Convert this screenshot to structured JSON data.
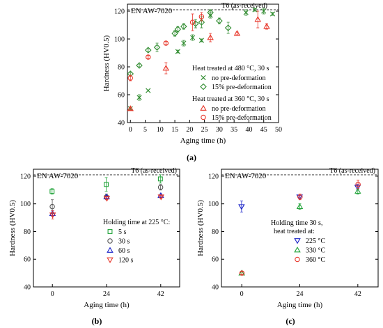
{
  "chart_data": [
    {
      "type": "scatter",
      "panel_label": "(a)",
      "title": "EN AW-7020",
      "xlabel": "Aging time (h)",
      "ylabel": "Hardness (HV0.5)",
      "xlim": [
        -1,
        50
      ],
      "ylim": [
        40,
        125
      ],
      "xticks": [
        0,
        5,
        10,
        15,
        20,
        25,
        30,
        35,
        40,
        45,
        50
      ],
      "yticks": [
        40,
        60,
        80,
        100,
        120
      ],
      "reference": {
        "label": "T6 (as-received)",
        "y": 121
      },
      "legend": {
        "placement": "right",
        "groups": [
          {
            "heading": "Heat treated at 480 °C, 30 s",
            "entries": [
              "no pre-deformation",
              "15% pre-deformation"
            ]
          },
          {
            "heading": "Heat treated at 360 °C, 30 s",
            "entries": [
              "no pre-deformation",
              "15% pre-deformation"
            ]
          }
        ]
      },
      "series": [
        {
          "name": "no pre-deformation",
          "group": "Heat treated at 480 °C, 30 s",
          "marker": "x",
          "color": "#2e8b2e",
          "x": [
            0,
            3,
            6,
            16,
            18,
            21,
            24,
            27,
            39,
            42,
            45,
            48
          ],
          "y": [
            50,
            58,
            63,
            91,
            97,
            101,
            99,
            117,
            119,
            121,
            120,
            118
          ],
          "err": [
            1,
            2,
            0,
            1,
            2,
            2,
            1,
            2,
            2,
            1,
            2,
            1
          ]
        },
        {
          "name": "15% pre-deformation",
          "group": "Heat treated at 480 °C, 30 s",
          "marker": "diamond",
          "color": "#2e8b2e",
          "x": [
            0,
            3,
            6,
            9,
            15,
            16,
            18,
            22,
            24,
            27,
            30,
            33
          ],
          "y": [
            75,
            81,
            92,
            94,
            104,
            107,
            109,
            111,
            112,
            119,
            113,
            108
          ],
          "err": [
            1,
            1,
            1,
            3,
            2,
            2,
            2,
            3,
            4,
            2,
            2,
            4
          ]
        },
        {
          "name": "no pre-deformation",
          "group": "Heat treated at 360 °C, 30 s",
          "marker": "triangle-up",
          "color": "#e8382c",
          "x": [
            0,
            12,
            27,
            36,
            43,
            46
          ],
          "y": [
            50,
            79,
            101,
            104,
            114,
            109
          ],
          "err": [
            1,
            4,
            3,
            1,
            6,
            2
          ]
        },
        {
          "name": "15% pre-deformation",
          "group": "Heat treated at 360 °C, 30 s",
          "marker": "circle",
          "color": "#e8382c",
          "x": [
            0,
            6,
            12,
            21,
            24
          ],
          "y": [
            72,
            87,
            97,
            112,
            116
          ],
          "err": [
            2,
            1,
            1,
            6,
            3
          ]
        }
      ]
    },
    {
      "type": "scatter",
      "panel_label": "(b)",
      "title": "EN AW-7020",
      "xlabel": "Aging time (h)",
      "ylabel": "Hardness (HV0.5)",
      "categories": [
        "0",
        "24",
        "42"
      ],
      "ylim": [
        40,
        125
      ],
      "yticks": [
        40,
        60,
        80,
        100,
        120
      ],
      "reference": {
        "label": "T6 (as-received)",
        "y": 121
      },
      "legend": {
        "placement": "right",
        "groups": [
          {
            "heading": "Holding time at 225 °C:",
            "entries": [
              "5 s",
              "30 s",
              "60 s",
              "120 s"
            ]
          }
        ]
      },
      "series": [
        {
          "name": "5 s",
          "marker": "square",
          "color": "#22a43a",
          "values": [
            109,
            114,
            118
          ],
          "err": [
            2,
            5,
            3
          ]
        },
        {
          "name": "30 s",
          "marker": "circle",
          "color": "#555555",
          "values": [
            98,
            105,
            112
          ],
          "err": [
            5,
            2,
            2
          ]
        },
        {
          "name": "60 s",
          "marker": "triangle-up",
          "color": "#1a23c8",
          "values": [
            93,
            105,
            106
          ],
          "err": [
            2,
            1,
            1
          ]
        },
        {
          "name": "120 s",
          "marker": "triangle-down",
          "color": "#e8382c",
          "values": [
            92,
            104,
            105
          ],
          "err": [
            3,
            1,
            1
          ]
        }
      ]
    },
    {
      "type": "scatter",
      "panel_label": "(c)",
      "title": "EN AW-7020",
      "xlabel": "Aging time (h)",
      "ylabel": "Hardness (HV0.5)",
      "categories": [
        "0",
        "24",
        "42"
      ],
      "ylim": [
        40,
        125
      ],
      "yticks": [
        40,
        60,
        80,
        100,
        120
      ],
      "reference": {
        "label": "T6 (as-received)",
        "y": 121
      },
      "legend": {
        "placement": "right",
        "groups": [
          {
            "heading": "Holding time 30 s, heat treated at:",
            "entries": [
              "225 °C",
              "330 °C",
              "360 °C"
            ]
          }
        ]
      },
      "series": [
        {
          "name": "225 °C",
          "marker": "triangle-down",
          "color": "#1a23c8",
          "values": [
            98,
            105,
            112
          ],
          "err": [
            4,
            1,
            2
          ]
        },
        {
          "name": "330 °C",
          "marker": "triangle-up",
          "color": "#22a43a",
          "values": [
            50,
            98,
            109
          ],
          "err": [
            1,
            2,
            2
          ]
        },
        {
          "name": "360 °C",
          "marker": "circle",
          "color": "#e8382c",
          "values": [
            50,
            105,
            114
          ],
          "err": [
            1,
            2,
            3
          ]
        }
      ]
    }
  ]
}
